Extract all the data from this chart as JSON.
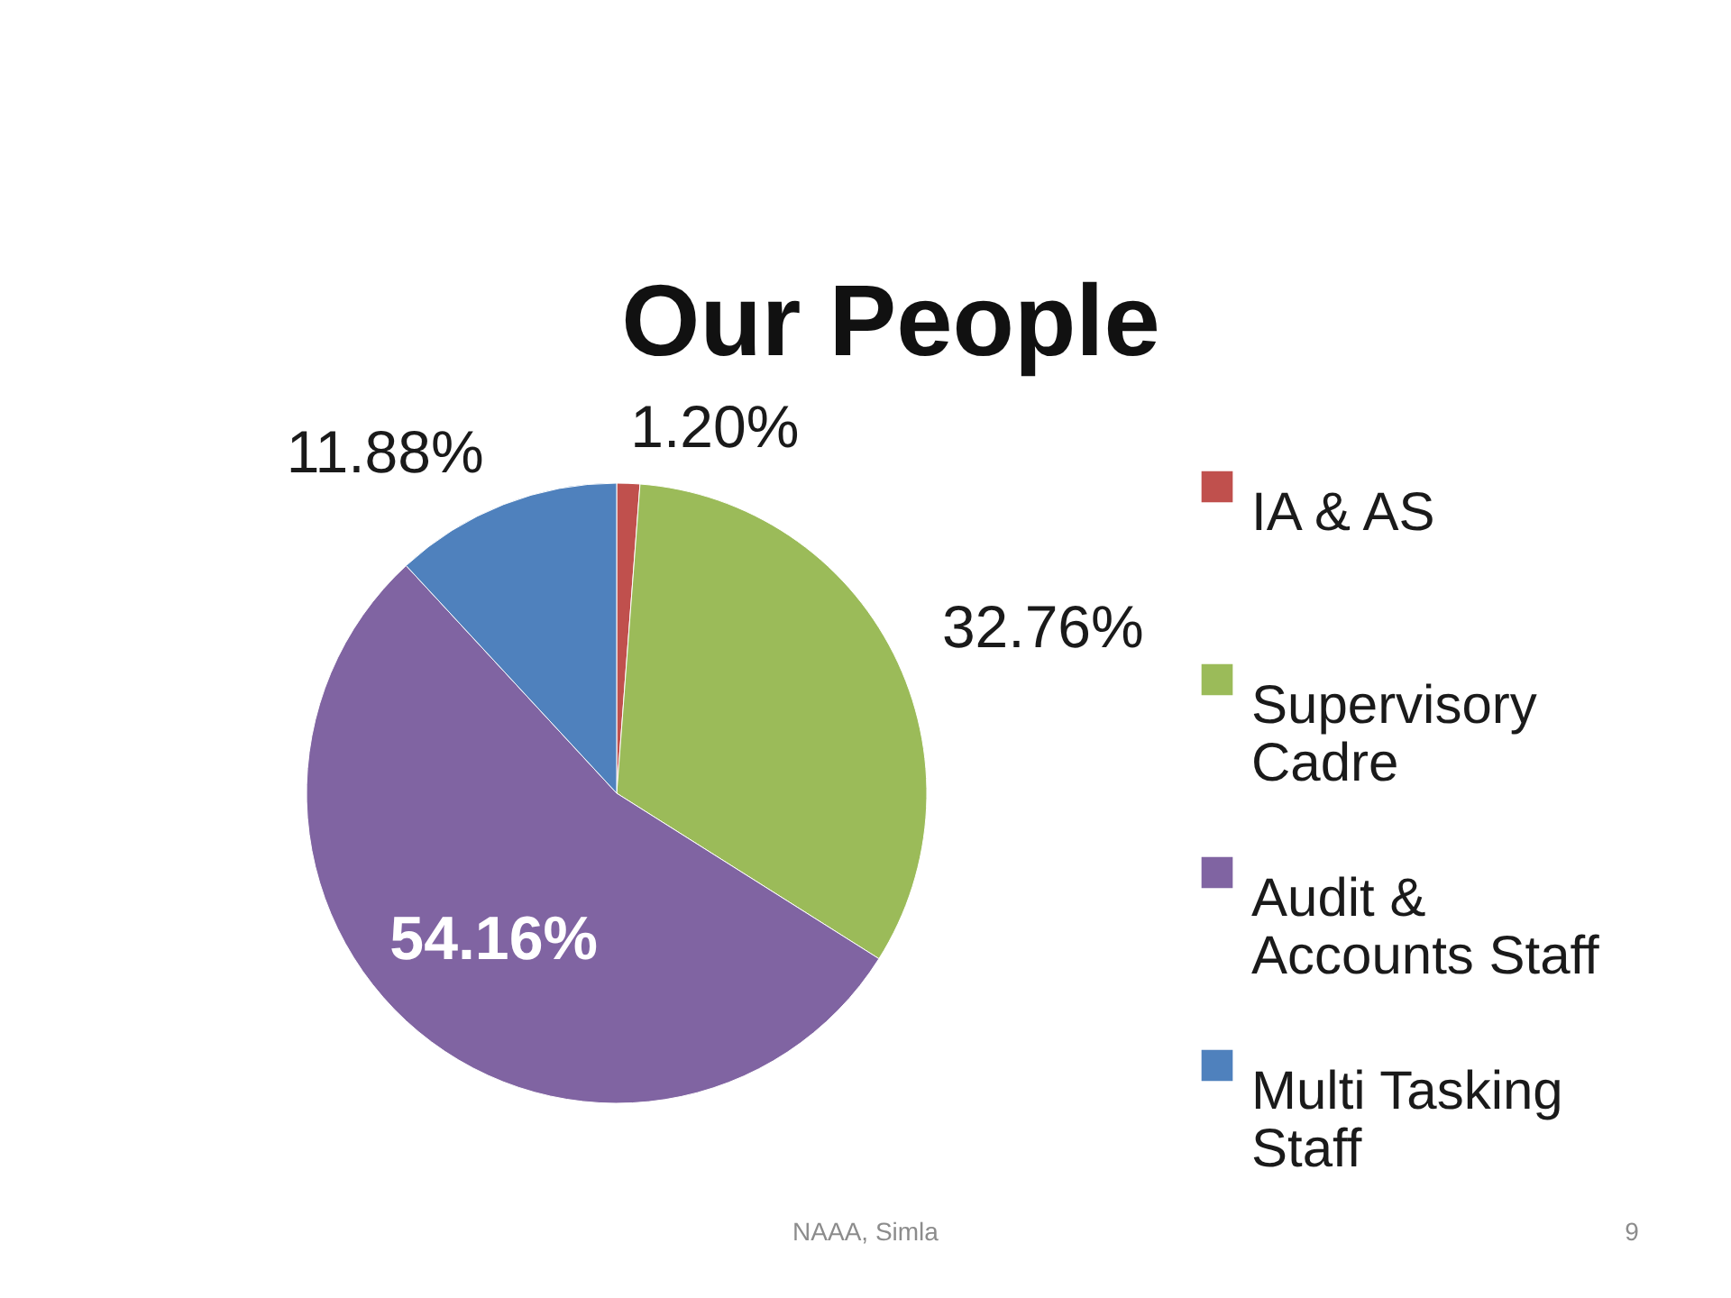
{
  "chart_data": {
    "type": "pie",
    "title": "Our People",
    "categories": [
      "IA & AS",
      "Supervisory Cadre",
      "Audit & Accounts Staff",
      "Multi Tasking Staff"
    ],
    "values": [
      1.2,
      32.76,
      54.16,
      11.88
    ],
    "colors": [
      "#c0504d",
      "#9bbb59",
      "#8064a2",
      "#4f81bd"
    ],
    "value_labels": [
      "1.20%",
      "32.76%",
      "54.16%",
      "11.88%"
    ],
    "legend": "right",
    "annotations": [
      "NAAA, Simla",
      "9"
    ]
  }
}
